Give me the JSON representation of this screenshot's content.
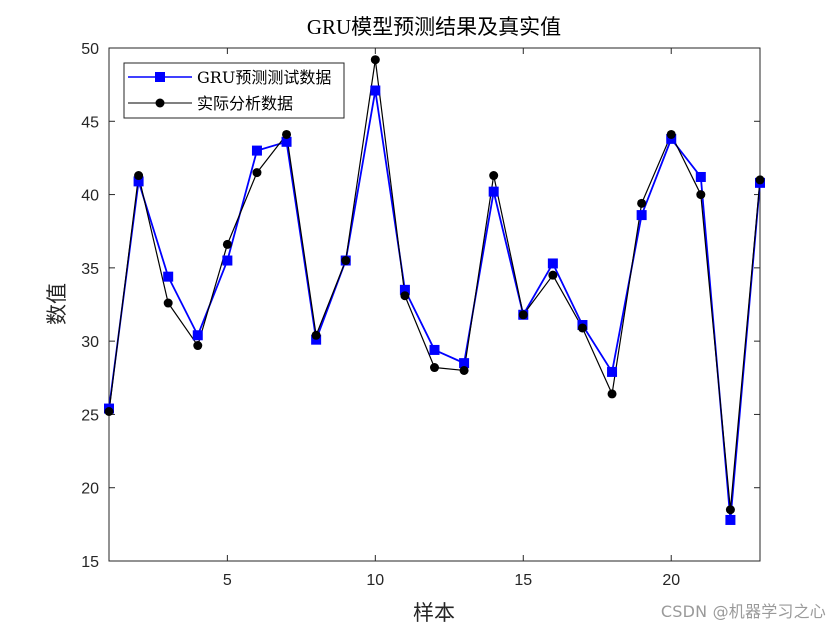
{
  "chart_data": {
    "type": "line",
    "title": "GRU模型预测结果及真实值",
    "xlabel": "样本",
    "ylabel": "数值",
    "xlim": [
      1,
      23
    ],
    "ylim": [
      15,
      50
    ],
    "xticks": [
      5,
      10,
      15,
      20
    ],
    "yticks": [
      15,
      20,
      25,
      30,
      35,
      40,
      45,
      50
    ],
    "grid": false,
    "legend_position": "top-left",
    "x": [
      1,
      2,
      3,
      4,
      5,
      6,
      7,
      8,
      9,
      10,
      11,
      12,
      13,
      14,
      15,
      16,
      17,
      18,
      19,
      20,
      21,
      22,
      23
    ],
    "series": [
      {
        "name": "GRU预测测试数据",
        "color": "#0000ff",
        "marker": "square",
        "values": [
          25.4,
          40.9,
          34.4,
          30.4,
          35.5,
          43.0,
          43.6,
          30.1,
          35.5,
          47.1,
          33.5,
          29.4,
          28.5,
          40.2,
          31.8,
          35.3,
          31.1,
          27.9,
          38.6,
          43.8,
          41.2,
          17.8,
          40.8
        ]
      },
      {
        "name": "实际分析数据",
        "color": "#000000",
        "marker": "circle",
        "values": [
          25.2,
          41.3,
          32.6,
          29.7,
          36.6,
          41.5,
          44.1,
          30.4,
          35.5,
          49.2,
          33.1,
          28.2,
          28.0,
          41.3,
          31.8,
          34.5,
          30.9,
          26.4,
          39.4,
          44.1,
          40.0,
          18.5,
          41.0
        ]
      }
    ]
  },
  "watermark": "CSDN @机器学习之心"
}
